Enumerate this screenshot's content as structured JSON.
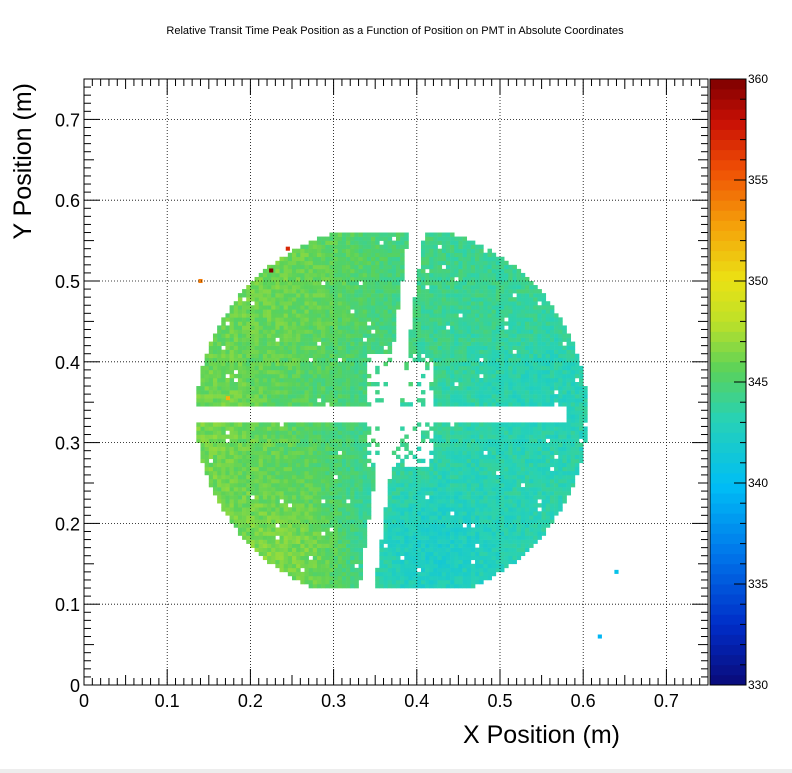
{
  "chart_data": {
    "type": "heatmap",
    "title": "Relative Transit Time Peak Position as a Function of Position on PMT in Absolute Coordinates",
    "xlabel": "X Position (m)",
    "ylabel": "Y Position (m)",
    "xlim": [
      0,
      0.75
    ],
    "ylim": [
      0,
      0.75
    ],
    "xticks": [
      "0",
      "0.1",
      "0.2",
      "0.3",
      "0.4",
      "0.5",
      "0.6",
      "0.7"
    ],
    "yticks": [
      "0",
      "0.1",
      "0.2",
      "0.3",
      "0.4",
      "0.5",
      "0.6",
      "0.7"
    ],
    "grid": true,
    "colorbar": {
      "zlim": [
        330,
        360
      ],
      "ticks": [
        "330",
        "335",
        "340",
        "345",
        "350",
        "355",
        "360"
      ],
      "palette": "rainbow (dark blue - cyan - green - yellow - red - dark red)"
    },
    "bin_size": 0.005,
    "disk": {
      "center": [
        0.37,
        0.335
      ],
      "radius": 0.235,
      "y_range": [
        0.12,
        0.56
      ]
    },
    "value_field": {
      "baseline": 344.5,
      "regions": [
        {
          "region": "upper-left edge",
          "x": 0.22,
          "y": 0.5,
          "value": 347
        },
        {
          "region": "left edge",
          "x": 0.11,
          "y": 0.3,
          "value": 347.5
        },
        {
          "region": "lower-left edge",
          "x": 0.24,
          "y": 0.16,
          "value": 348
        },
        {
          "region": "lower-middle",
          "x": 0.41,
          "y": 0.17,
          "value": 340.5
        },
        {
          "region": "right-middle",
          "x": 0.55,
          "y": 0.36,
          "value": 342
        },
        {
          "region": "upper-right",
          "x": 0.5,
          "y": 0.48,
          "value": 344
        }
      ]
    },
    "gaps": [
      {
        "shape": "horizontal band",
        "x": [
          0.11,
          0.58
        ],
        "y": [
          0.325,
          0.345
        ]
      },
      {
        "shape": "diagonal slot",
        "from": [
          0.405,
          0.6
        ],
        "to": [
          0.34,
          0.12
        ],
        "half_width": 0.009
      },
      {
        "shape": "cross hub",
        "x": [
          0.34,
          0.42
        ],
        "y": [
          0.27,
          0.41
        ]
      }
    ],
    "outliers": [
      {
        "x": 0.225,
        "y": 0.513,
        "value": 360
      },
      {
        "x": 0.245,
        "y": 0.54,
        "value": 357
      },
      {
        "x": 0.14,
        "y": 0.5,
        "value": 354
      },
      {
        "x": 0.173,
        "y": 0.355,
        "value": 352
      },
      {
        "x": 0.64,
        "y": 0.14,
        "value": 340.5
      },
      {
        "x": 0.62,
        "y": 0.06,
        "value": 339.5
      }
    ]
  }
}
